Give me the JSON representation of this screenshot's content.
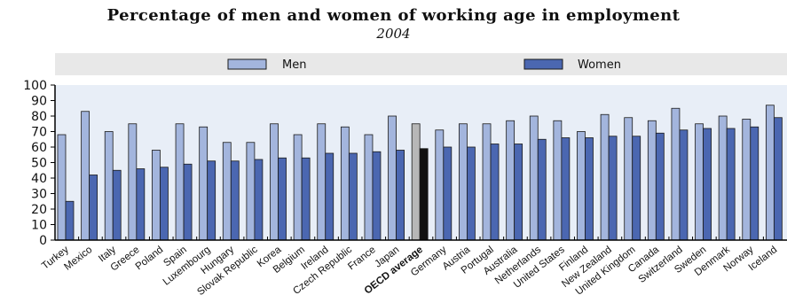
{
  "title": "Percentage of men and women of working age in employment",
  "subtitle": "2004",
  "colors": {
    "men": "#a3b5dd",
    "women": "#4b67b1",
    "oecd_men": "#b7b7b7",
    "oecd_women": "#111111",
    "legend_bg": "#e8e8e8",
    "plot_bg": "#e8eef7"
  },
  "chart_data": {
    "type": "bar",
    "ylim": [
      0,
      100
    ],
    "yticks": [
      0,
      10,
      20,
      30,
      40,
      50,
      60,
      70,
      80,
      90,
      100
    ],
    "legend_position": "top",
    "grid": false,
    "highlight_category": "OECD average",
    "categories": [
      "Turkey",
      "Mexico",
      "Italy",
      "Greece",
      "Poland",
      "Spain",
      "Luxembourg",
      "Hungary",
      "Slovak Republic",
      "Korea",
      "Belgium",
      "Ireland",
      "Czech Republic",
      "France",
      "Japan",
      "OECD average",
      "Germany",
      "Austria",
      "Portugal",
      "Australia",
      "Netherlands",
      "United States",
      "Finland",
      "New Zealand",
      "United Kingdom",
      "Canada",
      "Switzerland",
      "Sweden",
      "Denmark",
      "Norway",
      "Iceland"
    ],
    "series": [
      {
        "name": "Men",
        "values": [
          68,
          83,
          70,
          75,
          58,
          75,
          73,
          63,
          63,
          75,
          68,
          75,
          73,
          68,
          80,
          75,
          71,
          75,
          75,
          77,
          80,
          77,
          70,
          81,
          79,
          77,
          85,
          75,
          80,
          78,
          87
        ]
      },
      {
        "name": "Women",
        "values": [
          25,
          42,
          45,
          46,
          47,
          49,
          51,
          51,
          52,
          53,
          53,
          56,
          56,
          57,
          58,
          59,
          60,
          60,
          62,
          62,
          65,
          66,
          66,
          67,
          67,
          69,
          71,
          72,
          72,
          73,
          79
        ]
      }
    ]
  }
}
